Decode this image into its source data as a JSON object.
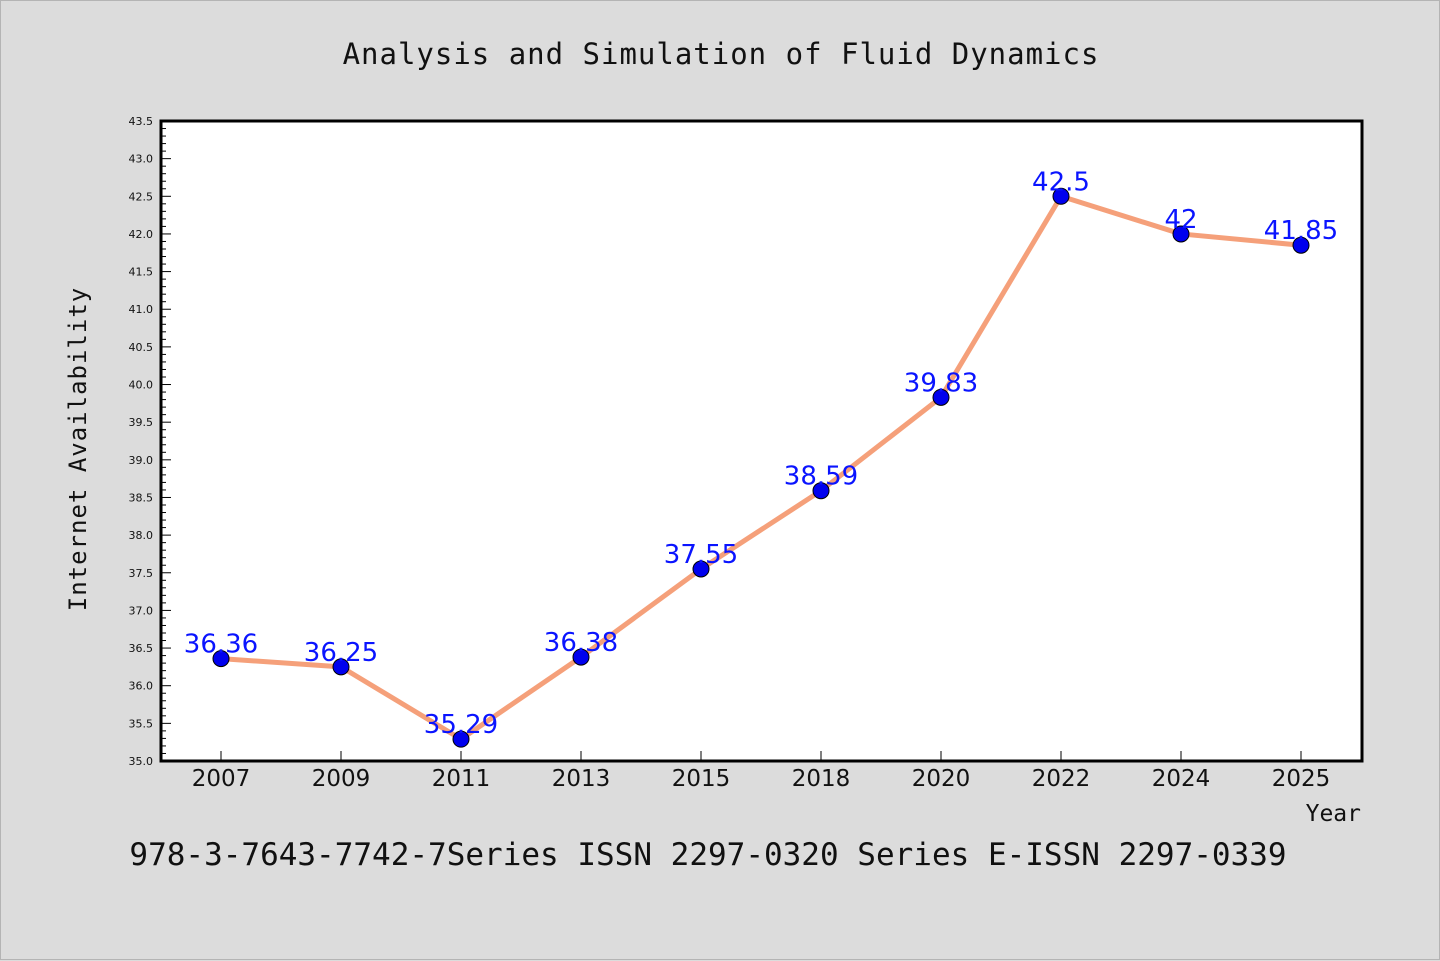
{
  "chart_data": {
    "type": "line",
    "title": "Analysis and Simulation of Fluid Dynamics",
    "xlabel": "Year",
    "ylabel": "Internet Availability",
    "categories": [
      "2007",
      "2009",
      "2011",
      "2013",
      "2015",
      "2018",
      "2020",
      "2022",
      "2024",
      "2025"
    ],
    "values": [
      36.36,
      36.25,
      35.29,
      36.38,
      37.55,
      38.59,
      39.83,
      42.5,
      42,
      41.85
    ],
    "data_labels": [
      "36.36",
      "36.25",
      "35.29",
      "36.38",
      "37.55",
      "38.59",
      "39.83",
      "42.5",
      "42",
      "41.85"
    ],
    "ylim": [
      35.0,
      43.5
    ],
    "yticks": [
      "35.0",
      "35.5",
      "36.0",
      "36.5",
      "37.0",
      "37.5",
      "38.0",
      "38.5",
      "39.0",
      "39.5",
      "40.0",
      "40.5",
      "41.0",
      "41.5",
      "42.0",
      "42.5",
      "43.0",
      "43.5"
    ],
    "grid": false,
    "colors": {
      "line": "#f5a07a",
      "marker": "#0000ee",
      "label": "#0a14ff",
      "background": "#dcdcdc",
      "plot_bg": "#ffffff"
    }
  },
  "footer": "978-3-7643-7742-7Series ISSN 2297-0320 Series E-ISSN 2297-0339"
}
